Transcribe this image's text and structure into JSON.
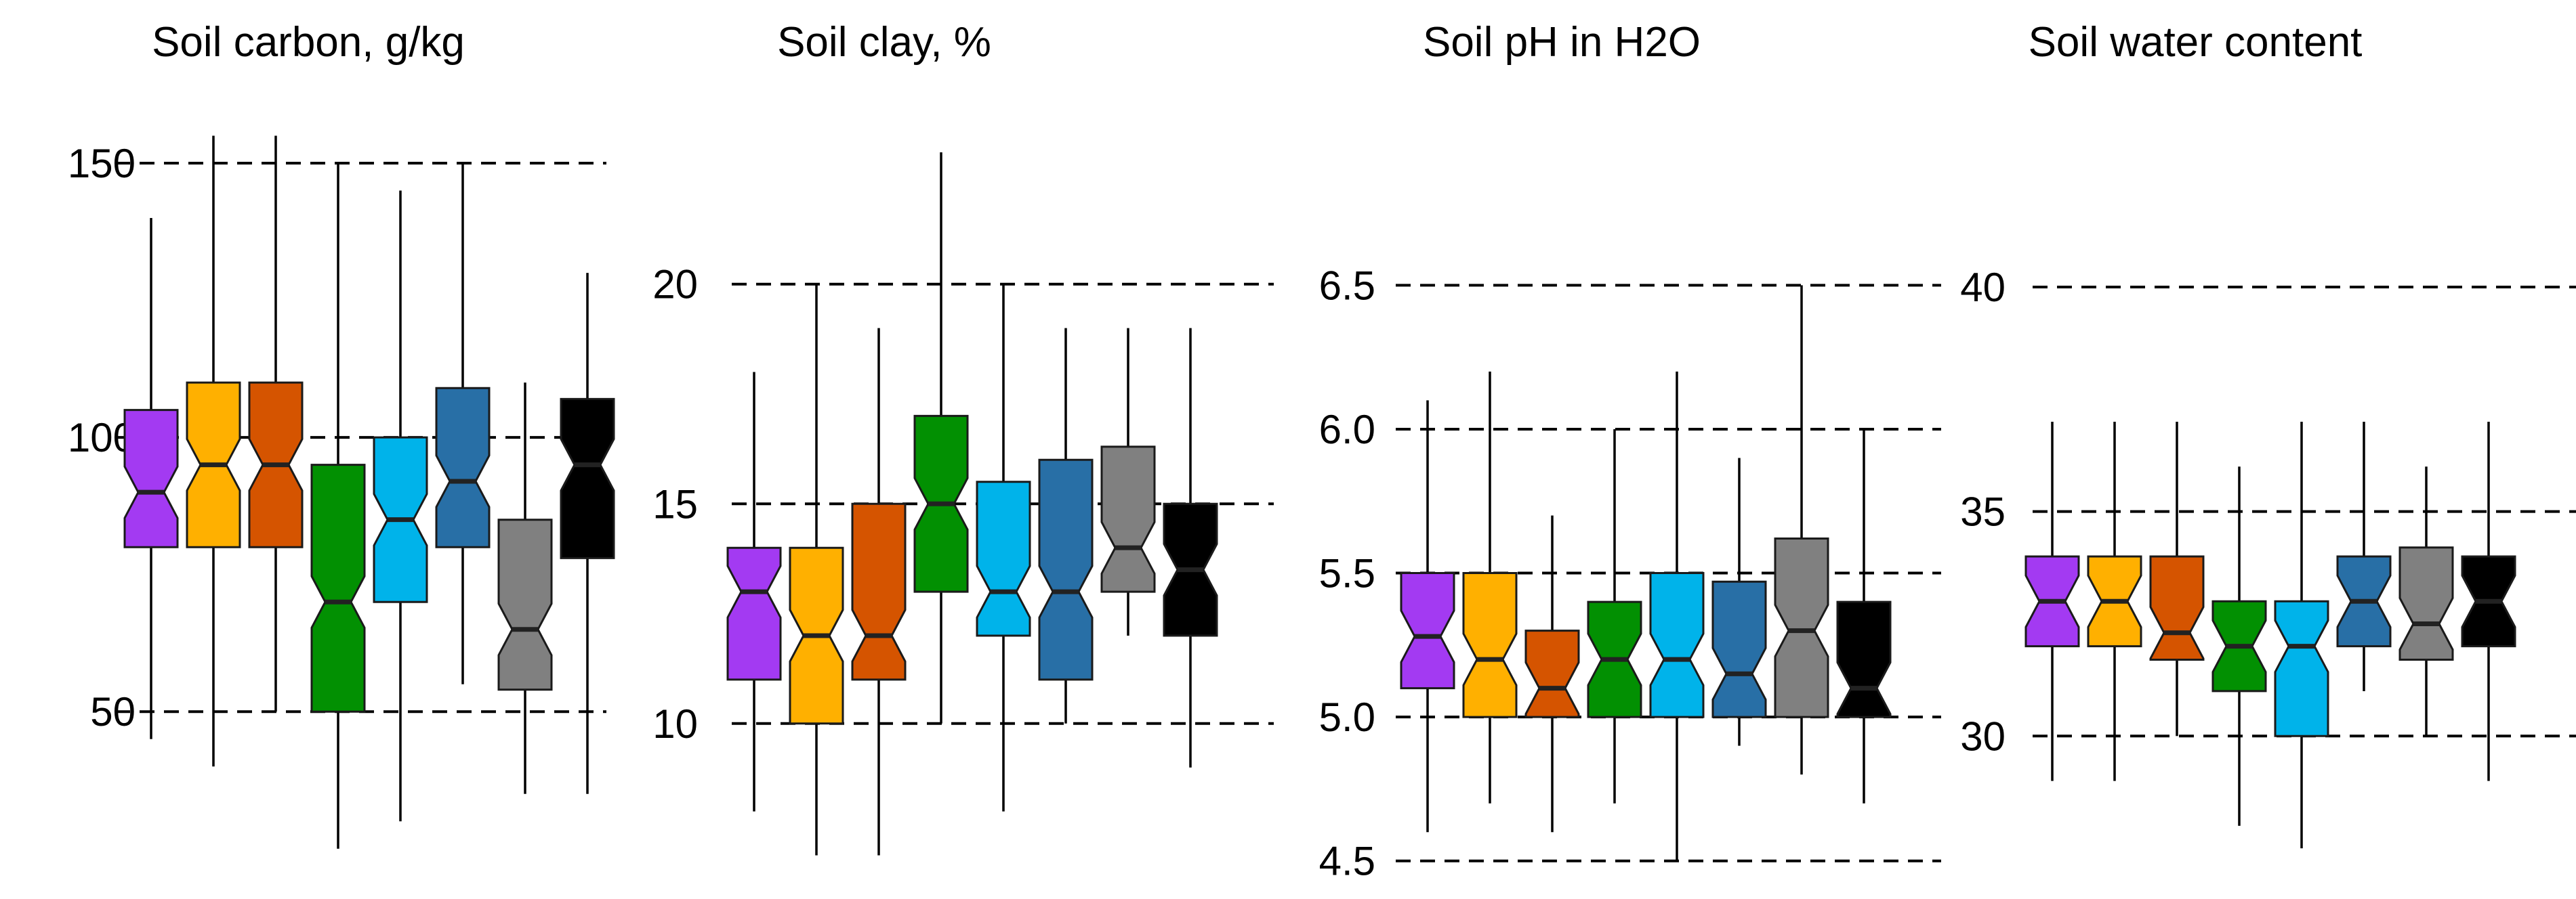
{
  "colors": [
    "#a33af2",
    "#ffb000",
    "#d55400",
    "#029002",
    "#00b3ea",
    "#286fa6",
    "#808080",
    "#000000"
  ],
  "chart_data": [
    {
      "type": "boxplot",
      "title": "Soil carbon, g/kg",
      "y_ticks": [
        50,
        100,
        150
      ],
      "ylim": [
        23,
        160
      ],
      "grid": "dashed horizontal",
      "boxes": [
        {
          "whisker_low": 45,
          "q1": 80,
          "median": 90,
          "q3": 105,
          "whisker_high": 140
        },
        {
          "whisker_low": 40,
          "q1": 80,
          "median": 95,
          "q3": 110,
          "whisker_high": 155
        },
        {
          "whisker_low": 50,
          "q1": 80,
          "median": 95,
          "q3": 110,
          "whisker_high": 155
        },
        {
          "whisker_low": 25,
          "q1": 50,
          "median": 70,
          "q3": 95,
          "whisker_high": 150
        },
        {
          "whisker_low": 30,
          "q1": 70,
          "median": 85,
          "q3": 100,
          "whisker_high": 145
        },
        {
          "whisker_low": 55,
          "q1": 80,
          "median": 92,
          "q3": 109,
          "whisker_high": 150
        },
        {
          "whisker_low": 35,
          "q1": 54,
          "median": 65,
          "q3": 85,
          "whisker_high": 110
        },
        {
          "whisker_low": 35,
          "q1": 78,
          "median": 95,
          "q3": 107,
          "whisker_high": 130
        }
      ]
    },
    {
      "type": "boxplot",
      "title": "Soil clay, %",
      "y_ticks": [
        10,
        15,
        20
      ],
      "ylim": [
        6.9,
        23
      ],
      "grid": "dashed horizontal",
      "boxes": [
        {
          "whisker_low": 8,
          "q1": 11,
          "median": 13,
          "q3": 14,
          "whisker_high": 18
        },
        {
          "whisker_low": 7,
          "q1": 10,
          "median": 12,
          "q3": 14,
          "whisker_high": 20
        },
        {
          "whisker_low": 7,
          "q1": 11,
          "median": 12,
          "q3": 15,
          "whisker_high": 19
        },
        {
          "whisker_low": 10,
          "q1": 13,
          "median": 15,
          "q3": 17,
          "whisker_high": 23
        },
        {
          "whisker_low": 8,
          "q1": 12,
          "median": 13,
          "q3": 15.5,
          "whisker_high": 20
        },
        {
          "whisker_low": 10,
          "q1": 11,
          "median": 13,
          "q3": 16,
          "whisker_high": 19
        },
        {
          "whisker_low": 12,
          "q1": 13,
          "median": 14,
          "q3": 16.3,
          "whisker_high": 19
        },
        {
          "whisker_low": 9,
          "q1": 12,
          "median": 13.5,
          "q3": 15,
          "whisker_high": 19
        }
      ]
    },
    {
      "type": "boxplot",
      "title": "Soil pH in H2O",
      "y_ticks": [
        4.5,
        5.0,
        5.5,
        6.0,
        6.5
      ],
      "y_tick_labels": [
        "4.5",
        "5.0",
        "5.5",
        "6.0",
        "6.5"
      ],
      "ylim": [
        4.45,
        6.95
      ],
      "grid": "dashed horizontal",
      "boxes": [
        {
          "whisker_low": 4.6,
          "q1": 5.1,
          "median": 5.28,
          "q3": 5.5,
          "whisker_high": 6.1
        },
        {
          "whisker_low": 4.7,
          "q1": 5.0,
          "median": 5.2,
          "q3": 5.5,
          "whisker_high": 6.2
        },
        {
          "whisker_low": 4.6,
          "q1": 5.0,
          "median": 5.1,
          "q3": 5.3,
          "whisker_high": 5.7
        },
        {
          "whisker_low": 4.7,
          "q1": 5.0,
          "median": 5.2,
          "q3": 5.4,
          "whisker_high": 6.0
        },
        {
          "whisker_low": 4.5,
          "q1": 5.0,
          "median": 5.2,
          "q3": 5.5,
          "whisker_high": 6.2
        },
        {
          "whisker_low": 4.9,
          "q1": 5.0,
          "median": 5.15,
          "q3": 5.47,
          "whisker_high": 5.9
        },
        {
          "whisker_low": 4.8,
          "q1": 5.0,
          "median": 5.3,
          "q3": 5.62,
          "whisker_high": 6.5
        },
        {
          "whisker_low": 4.7,
          "q1": 5.0,
          "median": 5.1,
          "q3": 5.4,
          "whisker_high": 6.0
        }
      ]
    },
    {
      "type": "boxplot",
      "title": "Soil water content",
      "y_ticks": [
        30,
        35,
        40
      ],
      "ylim": [
        27.2,
        43
      ],
      "grid": "dashed horizontal",
      "boxes": [
        {
          "whisker_low": 29,
          "q1": 32,
          "median": 33,
          "q3": 34,
          "whisker_high": 37
        },
        {
          "whisker_low": 29,
          "q1": 32,
          "median": 33,
          "q3": 34,
          "whisker_high": 37
        },
        {
          "whisker_low": 30,
          "q1": 31.7,
          "median": 32.3,
          "q3": 34,
          "whisker_high": 37
        },
        {
          "whisker_low": 28,
          "q1": 31,
          "median": 32,
          "q3": 33,
          "whisker_high": 36
        },
        {
          "whisker_low": 27.5,
          "q1": 30,
          "median": 32,
          "q3": 33,
          "whisker_high": 37
        },
        {
          "whisker_low": 31,
          "q1": 32,
          "median": 33,
          "q3": 34,
          "whisker_high": 37
        },
        {
          "whisker_low": 30,
          "q1": 31.7,
          "median": 32.5,
          "q3": 34.2,
          "whisker_high": 36
        },
        {
          "whisker_low": 29,
          "q1": 32,
          "median": 33,
          "q3": 34,
          "whisker_high": 37
        }
      ]
    }
  ]
}
